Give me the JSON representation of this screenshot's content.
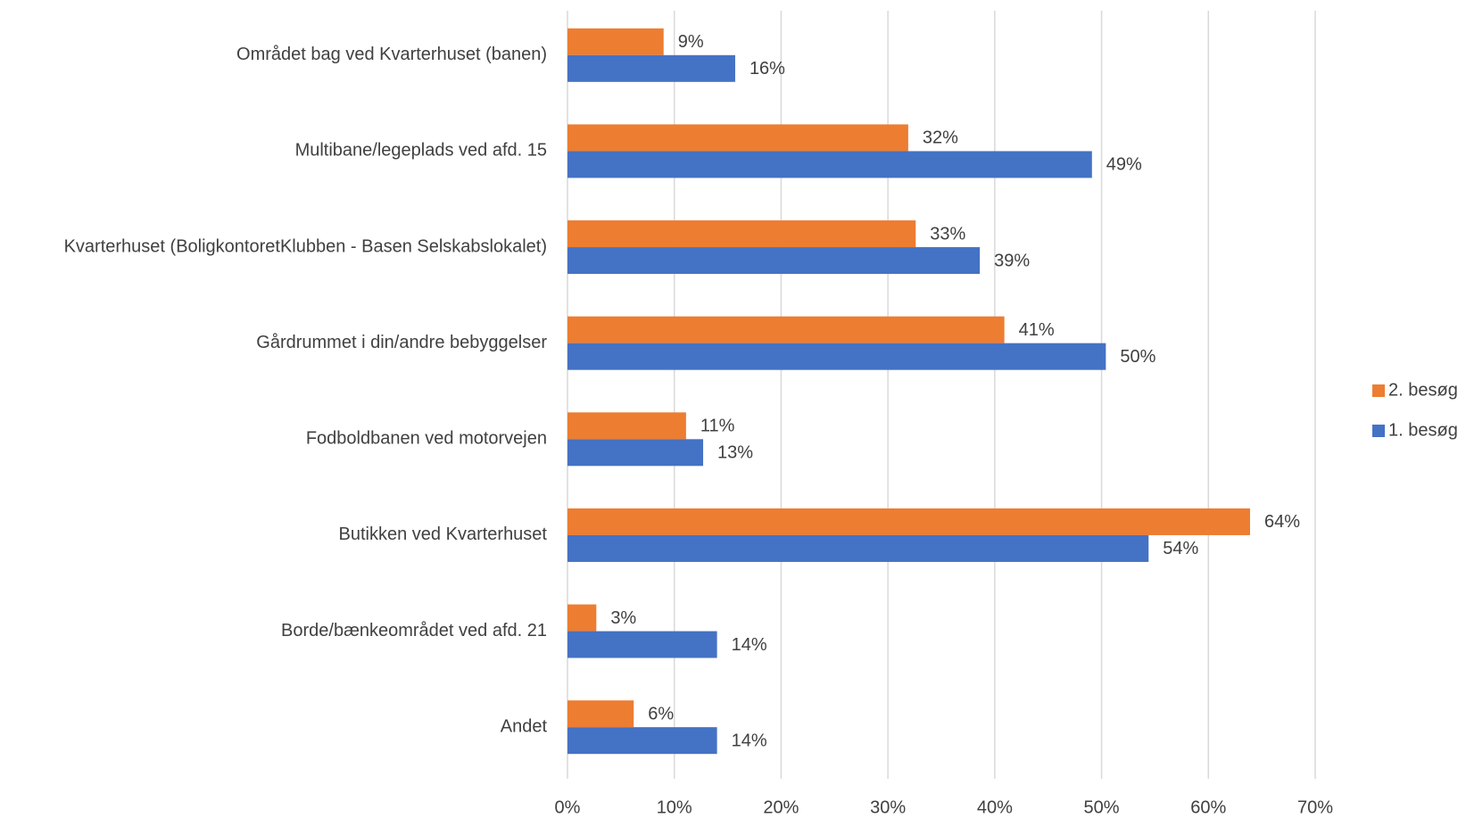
{
  "chart_data": {
    "type": "hbar",
    "categories": [
      "Området bag ved Kvarterhuset (banen)",
      "Multibane/legeplads ved afd. 15",
      "Kvarterhuset (BoligkontoretKlubben - Basen  Selskabslokalet)",
      "Gårdrummet i din/andre bebyggelser",
      "Fodboldbanen ved motorvejen",
      "Butikken ved Kvarterhuset",
      "Borde/bænkeområdet ved afd. 21",
      "Andet"
    ],
    "series": [
      {
        "name": "2. besøg",
        "color": "#ed7d31",
        "values": [
          9,
          31.9,
          32.6,
          40.9,
          11.1,
          63.9,
          2.7,
          6.2
        ],
        "value_labels": [
          "9%",
          "32%",
          "33%",
          "41%",
          "11%",
          "64%",
          "3%",
          "6%"
        ]
      },
      {
        "name": "1. besøg",
        "color": "#4472c4",
        "values": [
          15.7,
          49.1,
          38.6,
          50.4,
          12.7,
          54.4,
          14,
          14
        ],
        "value_labels": [
          "16%",
          "49%",
          "39%",
          "50%",
          "13%",
          "54%",
          "14%",
          "14%"
        ]
      }
    ],
    "xlim": [
      0,
      70
    ],
    "xticks": [
      {
        "value": 0,
        "label": "0%"
      },
      {
        "value": 10,
        "label": "10%"
      },
      {
        "value": 20,
        "label": "20%"
      },
      {
        "value": 30,
        "label": "30%"
      },
      {
        "value": 40,
        "label": "40%"
      },
      {
        "value": 50,
        "label": "50%"
      },
      {
        "value": 60,
        "label": "60%"
      },
      {
        "value": 70,
        "label": "70%"
      }
    ],
    "grid": true,
    "legend": "right"
  }
}
